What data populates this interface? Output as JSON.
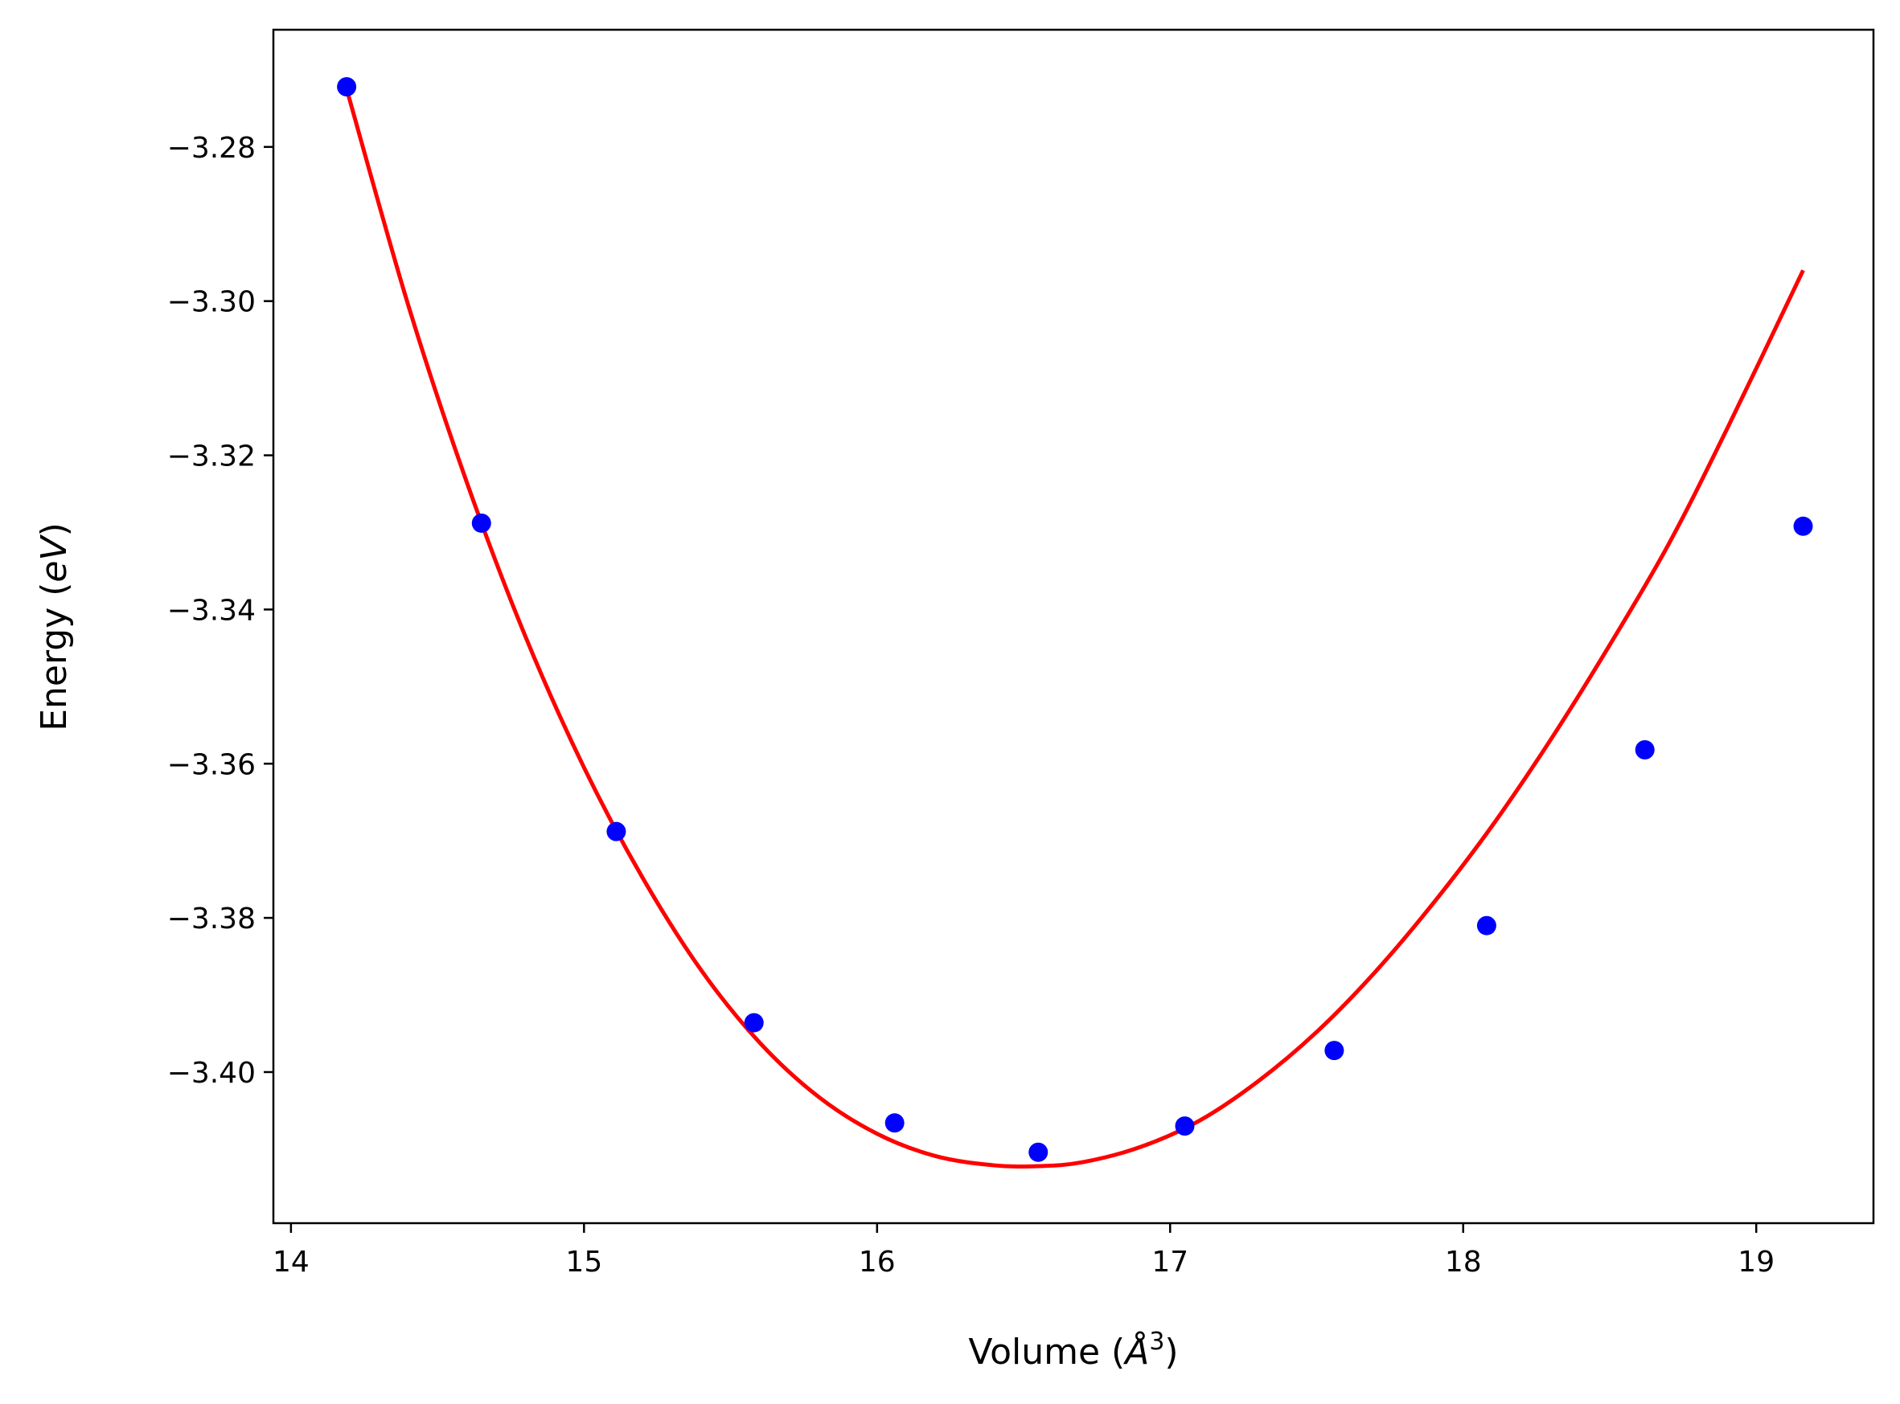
{
  "chart_data": {
    "type": "scatter",
    "xlabel": {
      "prefix": "Volume (",
      "italic": "Å",
      "sup": "3",
      "suffix": ")"
    },
    "ylabel": {
      "prefix": "Energy (",
      "italic": "eV",
      "suffix": ")"
    },
    "xlim": [
      13.94,
      19.4
    ],
    "ylim": [
      -3.4196,
      -3.2648
    ],
    "xticks": [
      14,
      15,
      16,
      17,
      18,
      19
    ],
    "xtick_labels": [
      "14",
      "15",
      "16",
      "17",
      "18",
      "19"
    ],
    "yticks": [
      -3.28,
      -3.3,
      -3.32,
      -3.34,
      -3.36,
      -3.38,
      -3.4
    ],
    "ytick_labels": [
      "−3.28",
      "−3.30",
      "−3.32",
      "−3.34",
      "−3.36",
      "−3.38",
      "−3.40"
    ],
    "grid": false,
    "series": [
      {
        "kind": "points",
        "color": "#0000ff",
        "x": [
          14.19,
          14.65,
          15.11,
          15.58,
          16.06,
          16.55,
          17.05,
          17.56,
          18.08,
          18.62,
          19.16
        ],
        "y": [
          -3.2722,
          -3.3288,
          -3.3688,
          -3.3936,
          -3.4066,
          -3.4104,
          -3.407,
          -3.3972,
          -3.381,
          -3.3582,
          -3.3292
        ]
      },
      {
        "kind": "fit",
        "color": "#ff0000",
        "x": [
          14.19,
          14.4,
          14.6,
          14.8,
          15.0,
          15.2,
          15.4,
          15.6,
          15.8,
          16.0,
          16.2,
          16.4,
          16.55,
          16.7,
          16.9,
          17.1,
          17.3,
          17.5,
          17.7,
          17.9,
          18.1,
          18.3,
          18.5,
          18.7,
          18.9,
          19.16
        ],
        "y": [
          -3.2725,
          -3.3005,
          -3.3235,
          -3.3435,
          -3.3605,
          -3.3748,
          -3.3868,
          -3.3962,
          -3.4032,
          -3.408,
          -3.4109,
          -3.4121,
          -3.4122,
          -3.4117,
          -3.4097,
          -3.4063,
          -3.4012,
          -3.3948,
          -3.387,
          -3.378,
          -3.368,
          -3.3568,
          -3.3446,
          -3.3316,
          -3.3166,
          -3.296
        ]
      }
    ]
  }
}
